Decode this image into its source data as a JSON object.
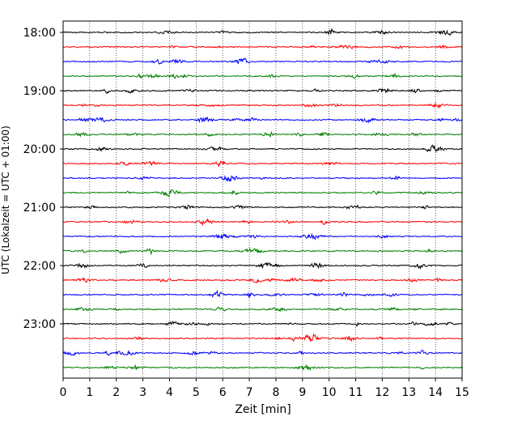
{
  "chart_data": {
    "type": "line",
    "title": "",
    "xlabel": "Zeit  [min]",
    "ylabel": "UTC (Lokalzeit = UTC + 01:00)",
    "xlim": [
      0,
      15
    ],
    "x_ticks": [
      0,
      1,
      2,
      3,
      4,
      5,
      6,
      7,
      8,
      9,
      10,
      11,
      12,
      13,
      14,
      15
    ],
    "x_tick_labels": [
      "0",
      "1",
      "2",
      "3",
      "4",
      "5",
      "6",
      "7",
      "8",
      "9",
      "10",
      "11",
      "12",
      "13",
      "14",
      "15"
    ],
    "y_tick_labels": [
      "18:00",
      "19:00",
      "20:00",
      "21:00",
      "22:00",
      "23:00"
    ],
    "y_tick_rows": [
      0,
      4,
      8,
      12,
      16,
      20
    ],
    "trace_interval_minutes": 15,
    "start_time": "18:00",
    "grid": "vertical-dotted",
    "colors": [
      "#000000",
      "#ff0000",
      "#0000ff",
      "#008000"
    ],
    "series": [
      {
        "start": "18:00",
        "color": "#000000"
      },
      {
        "start": "18:15",
        "color": "#ff0000"
      },
      {
        "start": "18:30",
        "color": "#0000ff"
      },
      {
        "start": "18:45",
        "color": "#008000"
      },
      {
        "start": "19:00",
        "color": "#000000"
      },
      {
        "start": "19:15",
        "color": "#ff0000"
      },
      {
        "start": "19:30",
        "color": "#0000ff"
      },
      {
        "start": "19:45",
        "color": "#008000"
      },
      {
        "start": "20:00",
        "color": "#000000"
      },
      {
        "start": "20:15",
        "color": "#ff0000"
      },
      {
        "start": "20:30",
        "color": "#0000ff"
      },
      {
        "start": "20:45",
        "color": "#008000"
      },
      {
        "start": "21:00",
        "color": "#000000"
      },
      {
        "start": "21:15",
        "color": "#ff0000"
      },
      {
        "start": "21:30",
        "color": "#0000ff"
      },
      {
        "start": "21:45",
        "color": "#008000"
      },
      {
        "start": "22:00",
        "color": "#000000"
      },
      {
        "start": "22:15",
        "color": "#ff0000"
      },
      {
        "start": "22:30",
        "color": "#0000ff"
      },
      {
        "start": "22:45",
        "color": "#008000"
      },
      {
        "start": "23:00",
        "color": "#000000"
      },
      {
        "start": "23:15",
        "color": "#ff0000"
      },
      {
        "start": "23:30",
        "color": "#0000ff"
      },
      {
        "start": "23:45",
        "color": "#008000"
      }
    ]
  }
}
